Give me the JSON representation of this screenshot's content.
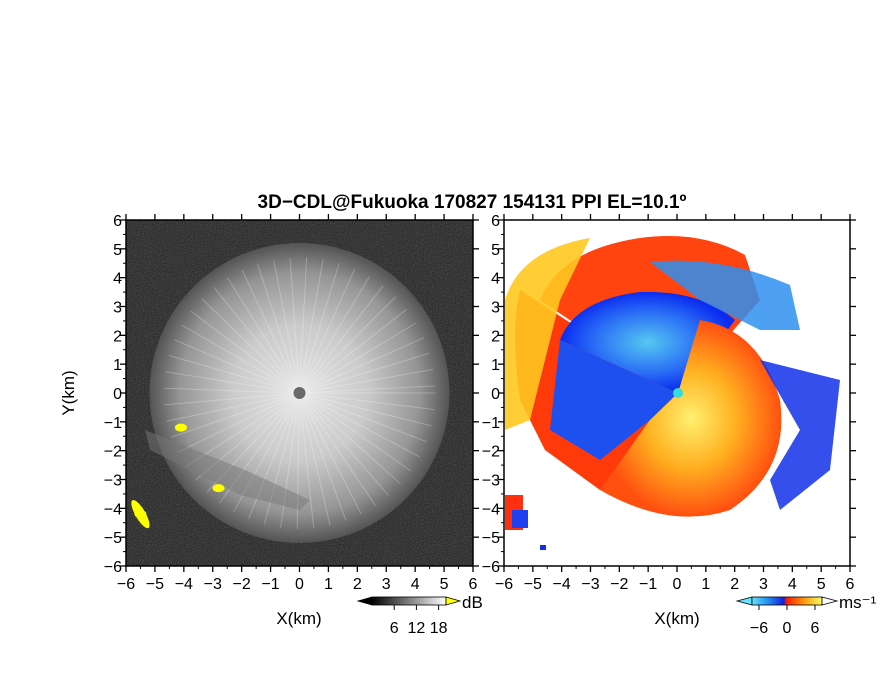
{
  "figure": {
    "title": "3D−CDL@Fukuoka 170827 154131 PPI EL=10.1º"
  },
  "chart_data": [
    {
      "type": "heatmap",
      "title": "",
      "xlabel": "X(km)",
      "ylabel": "Y(km)",
      "xlim": [
        -6,
        6
      ],
      "ylim": [
        -6,
        6
      ],
      "x_ticks": [
        "−6",
        "−5",
        "−4",
        "−3",
        "−2",
        "−1",
        "0",
        "1",
        "2",
        "3",
        "4",
        "5",
        "6"
      ],
      "y_ticks": [
        "−6",
        "−5",
        "−4",
        "−3",
        "−2",
        "−1",
        "0",
        "1",
        "2",
        "3",
        "4",
        "5",
        "6"
      ],
      "colorbar": {
        "label": "dB",
        "ticks": [
          6,
          12,
          18
        ],
        "tick_labels": [
          "6",
          "12",
          "18"
        ],
        "palette": "grayscale"
      },
      "field": "SNR",
      "radar_center": [
        0,
        0
      ],
      "echo_radius_km": 4.7,
      "features": [
        {
          "kind": "strong-echo",
          "x": -4.1,
          "y": -1.2,
          "color": "#ffff00"
        },
        {
          "kind": "strong-echo",
          "x": -2.8,
          "y": -3.3,
          "color": "#ffff00"
        },
        {
          "kind": "strong-echo",
          "x": -5.5,
          "y": -4.2,
          "color": "#ffff00"
        }
      ]
    },
    {
      "type": "heatmap",
      "title": "",
      "xlabel": "X(km)",
      "ylabel": "",
      "xlim": [
        -6,
        6
      ],
      "ylim": [
        -6,
        6
      ],
      "x_ticks": [
        "−6",
        "−5",
        "−4",
        "−3",
        "−2",
        "−1",
        "0",
        "1",
        "2",
        "3",
        "4",
        "5",
        "6"
      ],
      "y_ticks": [
        "−6",
        "−5",
        "−4",
        "−3",
        "−2",
        "−1",
        "0",
        "1",
        "2",
        "3",
        "4",
        "5",
        "6"
      ],
      "colorbar": {
        "label": "ms⁻¹",
        "ticks": [
          -6,
          0,
          6
        ],
        "tick_labels": [
          "−6",
          "0",
          "6"
        ],
        "palette": "doppler"
      },
      "field": "Doppler velocity",
      "radar_center": [
        0,
        0
      ],
      "regions": [
        {
          "quadrant": "north-west",
          "sign": "negative",
          "approx_value": -6
        },
        {
          "quadrant": "south-east",
          "sign": "positive",
          "approx_value": 6
        }
      ]
    }
  ],
  "colors": {
    "background": "#ffffff",
    "echo_strong": "#ffff00",
    "doppler_neg_dark": "#0033ff",
    "doppler_neg_light": "#33ccee",
    "doppler_zero": "#ff2200",
    "doppler_pos_light": "#ffee44"
  }
}
